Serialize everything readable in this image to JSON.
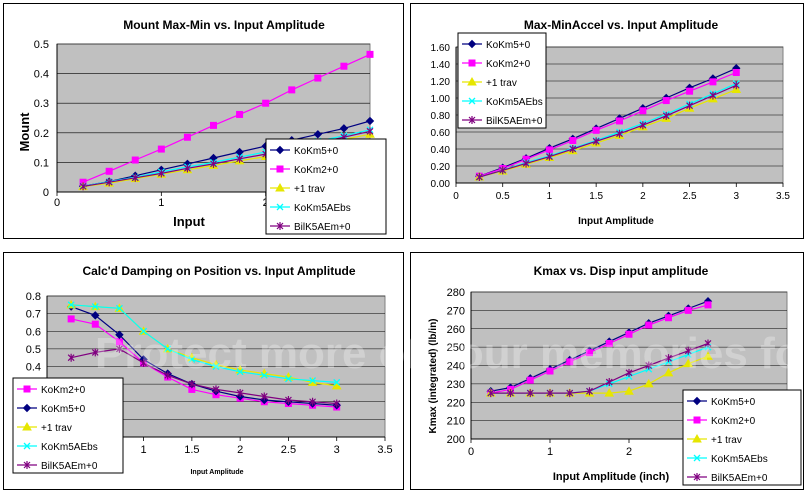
{
  "watermark_text": "Protect more of your memories for less!",
  "legend_keys": {
    "KoKm5+0": "k5",
    "KoKm2+0": "k2",
    "+1 trav": "tr",
    "KoKm5AEbs": "ae",
    "BilK5AEm+0": "bk"
  },
  "series_styles": {
    "k5": {
      "color": "#000080",
      "marker": "diamond"
    },
    "k2": {
      "color": "#ff00ff",
      "marker": "square"
    },
    "tr": {
      "color": "#e6e600",
      "marker": "triangle"
    },
    "ae": {
      "color": "#00ffff",
      "marker": "x"
    },
    "bk": {
      "color": "#800080",
      "marker": "star"
    }
  },
  "chart_data": [
    {
      "type": "line",
      "title": "Mount Max-Min vs. Input Amplitude",
      "xlabel": "Input",
      "ylabel": "Mount",
      "xlim": [
        0,
        3
      ],
      "ylim": [
        0,
        0.5
      ],
      "x_ticks": [
        "0",
        "1",
        "2"
      ],
      "y_ticks": [
        "0",
        "0.1",
        "0.2",
        "0.3",
        "0.4",
        "0.5"
      ],
      "y_tick_values": [
        0,
        0.1,
        0.2,
        0.3,
        0.4,
        0.5
      ],
      "x_tick_values": [
        0,
        1,
        2
      ],
      "legend": [
        "KoKm5+0",
        "KoKm2+0",
        "+1 trav",
        "KoKm5AEbs",
        "BilK5AEm+0"
      ],
      "series": [
        {
          "name": "KoKm5+0",
          "x": [
            0.25,
            0.5,
            0.75,
            1,
            1.25,
            1.5,
            1.75,
            2,
            2.25,
            2.5,
            2.75,
            3
          ],
          "values": [
            0.02,
            0.035,
            0.055,
            0.075,
            0.095,
            0.115,
            0.135,
            0.155,
            0.175,
            0.195,
            0.215,
            0.24
          ]
        },
        {
          "name": "KoKm2+0",
          "x": [
            0.25,
            0.5,
            0.75,
            1,
            1.25,
            1.5,
            1.75,
            2,
            2.25,
            2.5,
            2.75,
            3
          ],
          "values": [
            0.033,
            0.07,
            0.108,
            0.145,
            0.185,
            0.225,
            0.262,
            0.3,
            0.345,
            0.385,
            0.425,
            0.465
          ]
        },
        {
          "name": "+1 trav",
          "x": [
            0.25,
            0.5,
            0.75,
            1,
            1.25,
            1.5,
            1.75,
            2,
            2.25,
            2.5,
            2.75,
            3
          ],
          "values": [
            0.018,
            0.03,
            0.045,
            0.06,
            0.075,
            0.09,
            0.105,
            0.12,
            0.14,
            0.16,
            0.178,
            0.195
          ]
        },
        {
          "name": "KoKm5AEbs",
          "x": [
            0.25,
            0.5,
            0.75,
            1,
            1.25,
            1.5,
            1.75,
            2,
            2.25,
            2.5,
            2.75,
            3
          ],
          "values": [
            0.02,
            0.035,
            0.05,
            0.068,
            0.085,
            0.1,
            0.118,
            0.135,
            0.155,
            0.172,
            0.19,
            0.21
          ]
        },
        {
          "name": "BilK5AEm+0",
          "x": [
            0.25,
            0.5,
            0.75,
            1,
            1.25,
            1.5,
            1.75,
            2,
            2.25,
            2.5,
            2.75,
            3
          ],
          "values": [
            0.019,
            0.033,
            0.048,
            0.063,
            0.08,
            0.095,
            0.112,
            0.128,
            0.148,
            0.166,
            0.185,
            0.205
          ]
        }
      ]
    },
    {
      "type": "line",
      "title": "Max-MinAccel vs. Input Amplitude",
      "xlabel": "Input Amplitude",
      "ylabel": "",
      "xlim": [
        0,
        3.5
      ],
      "ylim": [
        0,
        1.6
      ],
      "x_ticks": [
        "0",
        "0.5",
        "1",
        "1.5",
        "2",
        "2.5",
        "3",
        "3.5"
      ],
      "x_tick_values": [
        0,
        0.5,
        1,
        1.5,
        2,
        2.5,
        3,
        3.5
      ],
      "y_ticks": [
        "0.00",
        "0.20",
        "0.40",
        "0.60",
        "0.80",
        "1.00",
        "1.20",
        "1.40",
        "1.60"
      ],
      "y_tick_values": [
        0,
        0.2,
        0.4,
        0.6,
        0.8,
        1.0,
        1.2,
        1.4,
        1.6
      ],
      "legend": [
        "KoKm5+0",
        "KoKm2+0",
        "+1 trav",
        "KoKm5AEbs",
        "BilK5AEm+0"
      ],
      "series": [
        {
          "name": "KoKm5+0",
          "x": [
            0.25,
            0.5,
            0.75,
            1,
            1.25,
            1.5,
            1.75,
            2,
            2.25,
            2.5,
            2.75,
            3
          ],
          "values": [
            0.08,
            0.18,
            0.29,
            0.41,
            0.52,
            0.64,
            0.76,
            0.88,
            1.0,
            1.12,
            1.23,
            1.35
          ]
        },
        {
          "name": "KoKm2+0",
          "x": [
            0.25,
            0.5,
            0.75,
            1,
            1.25,
            1.5,
            1.75,
            2,
            2.25,
            2.5,
            2.75,
            3
          ],
          "values": [
            0.08,
            0.17,
            0.28,
            0.39,
            0.5,
            0.62,
            0.73,
            0.85,
            0.97,
            1.08,
            1.19,
            1.3
          ]
        },
        {
          "name": "+1 trav",
          "x": [
            0.25,
            0.5,
            0.75,
            1,
            1.25,
            1.5,
            1.75,
            2,
            2.25,
            2.5,
            2.75,
            3
          ],
          "values": [
            0.07,
            0.14,
            0.22,
            0.3,
            0.38,
            0.47,
            0.56,
            0.66,
            0.76,
            0.88,
            0.99,
            1.1
          ]
        },
        {
          "name": "KoKm5AEbs",
          "x": [
            0.25,
            0.5,
            0.75,
            1,
            1.25,
            1.5,
            1.75,
            2,
            2.25,
            2.5,
            2.75,
            3
          ],
          "values": [
            0.07,
            0.15,
            0.24,
            0.32,
            0.41,
            0.5,
            0.6,
            0.7,
            0.81,
            0.93,
            1.05,
            1.17
          ]
        },
        {
          "name": "BilK5AEm+0",
          "x": [
            0.25,
            0.5,
            0.75,
            1,
            1.25,
            1.5,
            1.75,
            2,
            2.25,
            2.5,
            2.75,
            3
          ],
          "values": [
            0.07,
            0.15,
            0.23,
            0.31,
            0.4,
            0.49,
            0.58,
            0.68,
            0.79,
            0.91,
            1.03,
            1.15
          ]
        }
      ]
    },
    {
      "type": "line",
      "title": "Calc'd Damping on Position vs. Input Amplitude",
      "xlabel": "Input Amplitude",
      "ylabel": "",
      "xlim": [
        0,
        3.5
      ],
      "ylim": [
        0,
        0.8
      ],
      "x_ticks": [
        "0",
        "0.5",
        "1",
        "1.5",
        "2",
        "2.5",
        "3",
        "3.5"
      ],
      "x_tick_values": [
        0,
        0.5,
        1,
        1.5,
        2,
        2.5,
        3,
        3.5
      ],
      "y_ticks": [
        "0",
        "0.1",
        "0.2",
        "0.3",
        "0.4",
        "0.5",
        "0.6",
        "0.7",
        "0.8"
      ],
      "y_tick_values": [
        0,
        0.1,
        0.2,
        0.3,
        0.4,
        0.5,
        0.6,
        0.7,
        0.8
      ],
      "legend": [
        "KoKm2+0",
        "KoKm5+0",
        "+1 trav",
        "KoKm5AEbs",
        "BilK5AEm+0"
      ],
      "series": [
        {
          "name": "KoKm2+0",
          "x": [
            0.25,
            0.5,
            0.75,
            1,
            1.25,
            1.5,
            1.75,
            2,
            2.25,
            2.5,
            2.75,
            3
          ],
          "values": [
            0.67,
            0.64,
            0.54,
            0.42,
            0.34,
            0.27,
            0.24,
            0.22,
            0.2,
            0.19,
            0.18,
            0.17
          ]
        },
        {
          "name": "KoKm5+0",
          "x": [
            0.25,
            0.5,
            0.75,
            1,
            1.25,
            1.5,
            1.75,
            2,
            2.25,
            2.5,
            2.75,
            3
          ],
          "values": [
            0.74,
            0.69,
            0.58,
            0.44,
            0.36,
            0.3,
            0.26,
            0.23,
            0.21,
            0.2,
            0.19,
            0.18
          ]
        },
        {
          "name": "+1 trav",
          "x": [
            0.25,
            0.5,
            0.75,
            1,
            1.25,
            1.5,
            1.75,
            2,
            2.25,
            2.5,
            2.75,
            3
          ],
          "values": [
            0.75,
            0.74,
            0.73,
            0.6,
            0.5,
            0.45,
            0.41,
            0.38,
            0.36,
            0.34,
            0.31,
            0.29
          ]
        },
        {
          "name": "KoKm5AEbs",
          "x": [
            0.25,
            0.5,
            0.75,
            1,
            1.25,
            1.5,
            1.75,
            2,
            2.25,
            2.5,
            2.75,
            3
          ],
          "values": [
            0.75,
            0.74,
            0.73,
            0.6,
            0.5,
            0.44,
            0.4,
            0.37,
            0.35,
            0.33,
            0.32,
            0.31
          ]
        },
        {
          "name": "BilK5AEm+0",
          "x": [
            0.25,
            0.5,
            0.75,
            1,
            1.25,
            1.5,
            1.75,
            2,
            2.25,
            2.5,
            2.75,
            3
          ],
          "values": [
            0.45,
            0.48,
            0.5,
            0.42,
            0.35,
            0.3,
            0.27,
            0.25,
            0.23,
            0.21,
            0.2,
            0.19
          ]
        }
      ]
    },
    {
      "type": "line",
      "title": "Kmax vs. Disp input amplitude",
      "xlabel": "Input Amplitude (inch)",
      "ylabel": "Kmax (integrated) (lb/in)",
      "xlim": [
        0,
        4
      ],
      "ylim": [
        200,
        280
      ],
      "x_ticks": [
        "0",
        "1",
        "2"
      ],
      "x_tick_values": [
        0,
        1,
        2
      ],
      "y_ticks": [
        "200",
        "210",
        "220",
        "230",
        "240",
        "250",
        "260",
        "270",
        "280"
      ],
      "y_tick_values": [
        200,
        210,
        220,
        230,
        240,
        250,
        260,
        270,
        280
      ],
      "legend": [
        "KoKm5+0",
        "KoKm2+0",
        "+1 trav",
        "KoKm5AEbs",
        "BilK5AEm+0"
      ],
      "series": [
        {
          "name": "KoKm5+0",
          "x": [
            0.25,
            0.5,
            0.75,
            1,
            1.25,
            1.5,
            1.75,
            2,
            2.25,
            2.5,
            2.75,
            3
          ],
          "values": [
            226,
            228,
            233,
            238,
            243,
            248,
            253,
            258,
            263,
            267,
            271,
            275
          ]
        },
        {
          "name": "KoKm2+0",
          "x": [
            0.25,
            0.5,
            0.75,
            1,
            1.25,
            1.5,
            1.75,
            2,
            2.25,
            2.5,
            2.75,
            3
          ],
          "values": [
            225,
            227,
            232,
            237,
            242,
            247,
            252,
            257,
            262,
            266,
            270,
            273
          ]
        },
        {
          "name": "+1 trav",
          "x": [
            0.25,
            0.5,
            0.75,
            1,
            1.25,
            1.5,
            1.75,
            2,
            2.25,
            2.5,
            2.75,
            3
          ],
          "values": [
            225,
            225,
            225,
            225,
            225,
            225,
            225,
            226,
            230,
            236,
            241,
            245
          ]
        },
        {
          "name": "KoKm5AEbs",
          "x": [
            0.25,
            0.5,
            0.75,
            1,
            1.25,
            1.5,
            1.75,
            2,
            2.25,
            2.5,
            2.75,
            3
          ],
          "values": [
            225,
            225,
            225,
            225,
            225,
            226,
            230,
            234,
            238,
            242,
            246,
            250
          ]
        },
        {
          "name": "BilK5AEm+0",
          "x": [
            0.25,
            0.5,
            0.75,
            1,
            1.25,
            1.5,
            1.75,
            2,
            2.25,
            2.5,
            2.75,
            3
          ],
          "values": [
            225,
            225,
            225,
            225,
            225,
            226,
            231,
            236,
            240,
            244,
            248,
            252
          ]
        }
      ]
    }
  ]
}
